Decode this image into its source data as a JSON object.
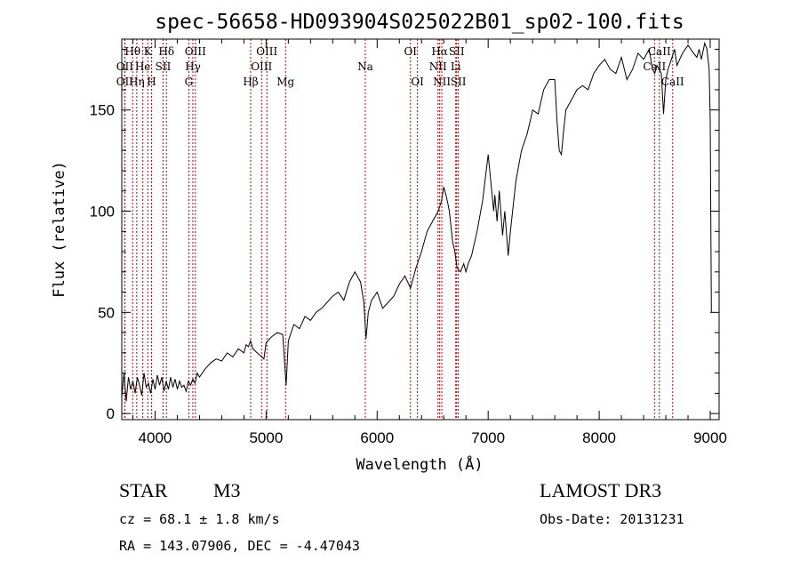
{
  "chart_data": {
    "type": "line",
    "title": "spec-56658-HD093904S025022B01_sp02-100.fits",
    "xlabel": "Wavelength (Å)",
    "ylabel": "Flux (relative)",
    "xlim": [
      3700,
      9080
    ],
    "ylim": [
      -3,
      185
    ],
    "xticks": [
      4000,
      5000,
      6000,
      7000,
      8000,
      9000
    ],
    "yticks": [
      0,
      50,
      100,
      150
    ],
    "colors": {
      "spectrum": "#000000",
      "lines": "#cc0000",
      "axes": "#000000"
    },
    "series": [
      {
        "name": "spectrum",
        "x": [
          3700,
          3720,
          3740,
          3760,
          3780,
          3800,
          3820,
          3840,
          3860,
          3880,
          3900,
          3920,
          3940,
          3960,
          3980,
          4000,
          4020,
          4040,
          4060,
          4080,
          4100,
          4120,
          4140,
          4160,
          4180,
          4200,
          4220,
          4240,
          4260,
          4280,
          4300,
          4320,
          4340,
          4360,
          4380,
          4400,
          4450,
          4500,
          4550,
          4600,
          4650,
          4700,
          4750,
          4800,
          4820,
          4840,
          4860,
          4880,
          4900,
          4920,
          4940,
          4960,
          4980,
          5000,
          5050,
          5100,
          5150,
          5180,
          5200,
          5250,
          5300,
          5350,
          5400,
          5450,
          5500,
          5550,
          5600,
          5650,
          5700,
          5750,
          5780,
          5800,
          5850,
          5880,
          5900,
          5920,
          5950,
          6000,
          6050,
          6100,
          6150,
          6200,
          6250,
          6300,
          6350,
          6400,
          6450,
          6500,
          6550,
          6580,
          6600,
          6620,
          6640,
          6650,
          6680,
          6700,
          6720,
          6750,
          6780,
          6800,
          6820,
          6850,
          6900,
          6950,
          7000,
          7050,
          7060,
          7080,
          7100,
          7130,
          7150,
          7180,
          7200,
          7250,
          7300,
          7350,
          7380,
          7400,
          7450,
          7500,
          7550,
          7600,
          7620,
          7640,
          7660,
          7680,
          7700,
          7750,
          7800,
          7850,
          7900,
          7950,
          8000,
          8050,
          8100,
          8150,
          8200,
          8250,
          8300,
          8350,
          8400,
          8450,
          8480,
          8500,
          8520,
          8540,
          8560,
          8580,
          8600,
          8620,
          8650,
          8680,
          8700,
          8750,
          8800,
          8850,
          8880,
          8900,
          8920,
          8950,
          8970,
          8990,
          9000,
          9010
        ],
        "y": [
          8,
          20,
          6,
          18,
          12,
          16,
          10,
          18,
          14,
          9,
          20,
          13,
          15,
          10,
          17,
          12,
          19,
          14,
          18,
          11,
          16,
          12,
          18,
          13,
          17,
          12,
          16,
          13,
          14,
          11,
          16,
          14,
          17,
          15,
          20,
          18,
          22,
          25,
          27,
          26,
          30,
          28,
          32,
          30,
          34,
          33,
          36,
          32,
          31,
          30,
          29,
          28,
          27,
          35,
          38,
          40,
          39,
          14,
          36,
          44,
          42,
          48,
          46,
          50,
          52,
          55,
          58,
          60,
          56,
          65,
          68,
          70,
          65,
          55,
          37,
          50,
          56,
          60,
          52,
          55,
          58,
          64,
          68,
          62,
          72,
          80,
          90,
          95,
          100,
          105,
          112,
          108,
          103,
          100,
          85,
          80,
          72,
          70,
          74,
          70,
          74,
          78,
          90,
          105,
          128,
          100,
          108,
          95,
          110,
          88,
          100,
          78,
          90,
          115,
          130,
          138,
          145,
          150,
          148,
          160,
          165,
          165,
          145,
          130,
          128,
          140,
          150,
          155,
          160,
          162,
          160,
          168,
          172,
          175,
          170,
          168,
          176,
          165,
          170,
          178,
          175,
          180,
          170,
          168,
          172,
          170,
          168,
          148,
          165,
          170,
          175,
          180,
          172,
          178,
          182,
          178,
          176,
          180,
          175,
          183,
          180,
          170,
          145,
          50
        ]
      }
    ],
    "line_markers": [
      {
        "name": "Hθ",
        "x": 3798,
        "row": 1
      },
      {
        "name": "OII",
        "x": 3727,
        "row": 2
      },
      {
        "name": "OII",
        "x": 3727,
        "row": 3
      },
      {
        "name": "Hη",
        "x": 3835,
        "row": 3
      },
      {
        "name": "He",
        "x": 3889,
        "row": 2
      },
      {
        "name": "K",
        "x": 3934,
        "row": 1
      },
      {
        "name": "H",
        "x": 3968,
        "row": 3
      },
      {
        "name": "SII",
        "x": 4072,
        "row": 2
      },
      {
        "name": "Hδ",
        "x": 4102,
        "row": 1
      },
      {
        "name": "OIII",
        "x": 4363,
        "row": 1
      },
      {
        "name": "Hγ",
        "x": 4340,
        "row": 2
      },
      {
        "name": "G",
        "x": 4304,
        "row": 3
      },
      {
        "name": "Hβ",
        "x": 4861,
        "row": 3
      },
      {
        "name": "OIII",
        "x": 4959,
        "row": 2
      },
      {
        "name": "OIII",
        "x": 5007,
        "row": 1
      },
      {
        "name": "Mg",
        "x": 5175,
        "row": 3
      },
      {
        "name": "Na",
        "x": 5893,
        "row": 2
      },
      {
        "name": "OI",
        "x": 6300,
        "row": 1
      },
      {
        "name": "OI",
        "x": 6363,
        "row": 3
      },
      {
        "name": "NII",
        "x": 6548,
        "row": 2
      },
      {
        "name": "NII",
        "x": 6583,
        "row": 3
      },
      {
        "name": "Hα",
        "x": 6563,
        "row": 1
      },
      {
        "name": "SII",
        "x": 6716,
        "row": 1
      },
      {
        "name": "Li",
        "x": 6708,
        "row": 2
      },
      {
        "name": "SII",
        "x": 6731,
        "row": 3
      },
      {
        "name": "CaII",
        "x": 8498,
        "row": 2
      },
      {
        "name": "CaII",
        "x": 8542,
        "row": 1
      },
      {
        "name": "CaII",
        "x": 8662,
        "row": 3
      }
    ]
  },
  "info": {
    "object_class": "STAR",
    "subclass": "M3",
    "survey": "LAMOST DR3",
    "cz": "cz = 68.1 ± 1.8 km/s",
    "obs_date": "Obs-Date: 20131231",
    "coords": "RA = 143.07906, DEC =  -4.47043"
  }
}
